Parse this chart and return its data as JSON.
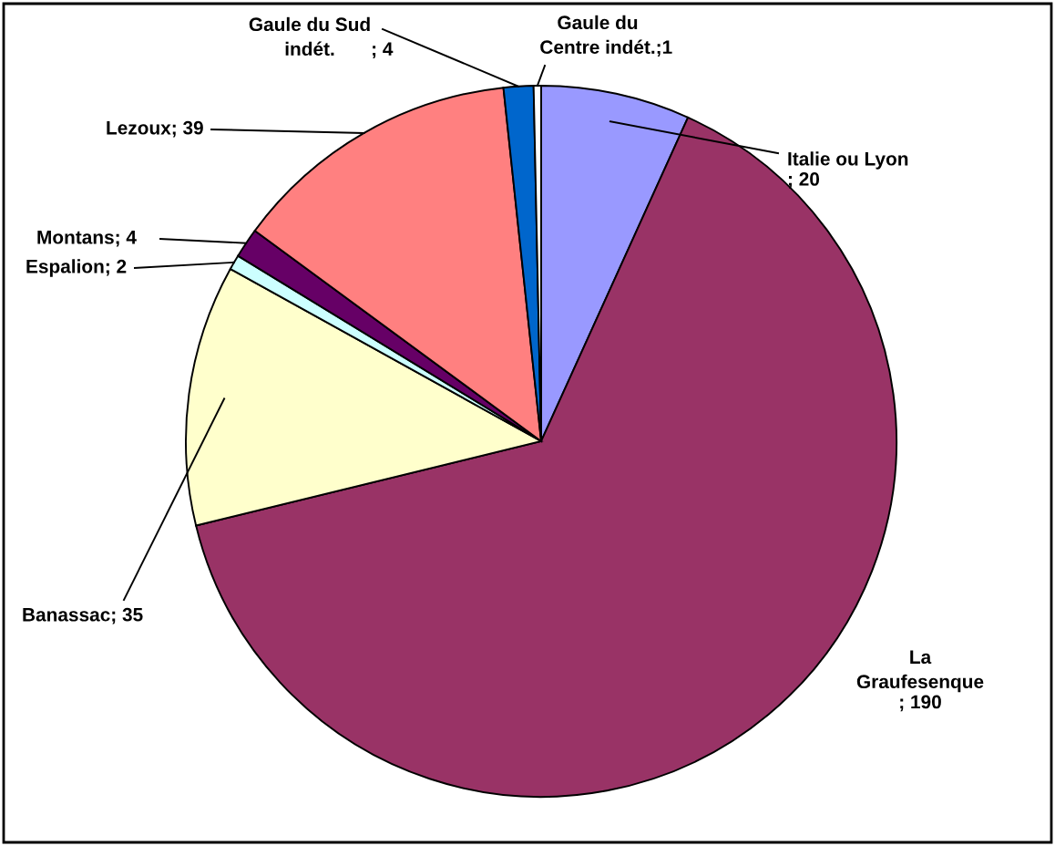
{
  "chart_data": {
    "type": "pie",
    "categories": [
      "Italie ou Lyon",
      "La Graufesenque",
      "Banassac",
      "Espalion",
      "Montans",
      "Lezoux",
      "Gaule du Sud indét.",
      "Gaule du Centre indét."
    ],
    "values": [
      20,
      190,
      35,
      2,
      4,
      39,
      4,
      1
    ],
    "colors": [
      "#9999ff",
      "#993366",
      "#ffffcc",
      "#ccffff",
      "#660066",
      "#ff8080",
      "#0066cc",
      "#ffffff"
    ],
    "value_labels": [
      "; 20",
      "; 190",
      "; 35",
      "; 2",
      "; 4",
      "; 39",
      "; 4",
      ";1"
    ],
    "legend": false
  }
}
